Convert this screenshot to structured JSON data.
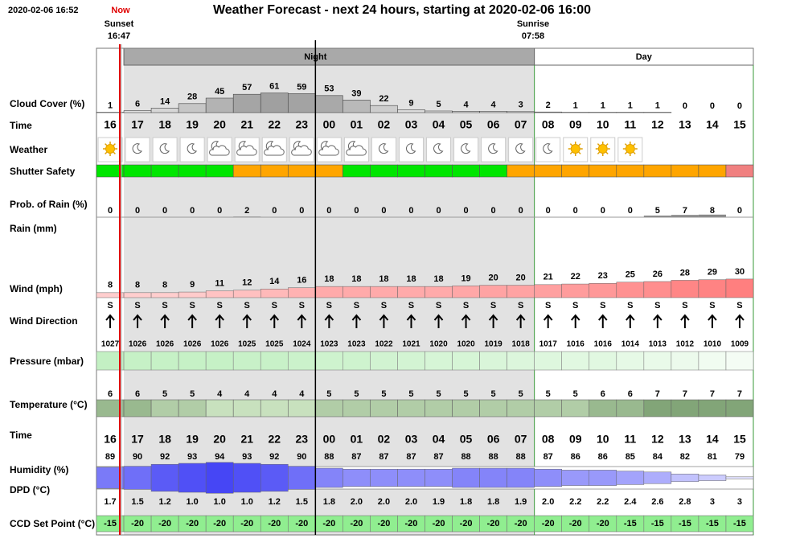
{
  "header": {
    "timestamp": "2020-02-06 16:52",
    "now": "Now",
    "title": "Weather Forecast - next 24 hours, starting at 2020-02-06 16:00",
    "sunset": {
      "label": "Sunset",
      "time": "16:47"
    },
    "sunrise": {
      "label": "Sunrise",
      "time": "07:58"
    }
  },
  "periods": {
    "night": "Night",
    "day": "Day"
  },
  "hours": [
    "16",
    "17",
    "18",
    "19",
    "20",
    "21",
    "22",
    "23",
    "00",
    "01",
    "02",
    "03",
    "04",
    "05",
    "06",
    "07",
    "08",
    "09",
    "10",
    "11",
    "12",
    "13",
    "14",
    "15"
  ],
  "rows": {
    "cloud_cover": {
      "label": "Cloud Cover (%)",
      "values": [
        1,
        6,
        14,
        28,
        45,
        57,
        61,
        59,
        53,
        39,
        22,
        9,
        5,
        4,
        4,
        3,
        2,
        1,
        1,
        1,
        1,
        0,
        0,
        0
      ]
    },
    "time_top": {
      "label": "Time"
    },
    "weather": {
      "label": "Weather",
      "icons": [
        "sun",
        "moon",
        "moon",
        "moon",
        "cloud-moon",
        "cloud-moon",
        "cloud-moon",
        "cloud-moon",
        "cloud-moon",
        "cloud-moon",
        "moon",
        "moon",
        "moon",
        "moon",
        "moon",
        "moon",
        "moon",
        "sun",
        "sun",
        "sun",
        null,
        null,
        null,
        null
      ]
    },
    "shutter_safety": {
      "label": "Shutter Safety",
      "colors": [
        "#00e600",
        "#00e600",
        "#00e600",
        "#00e600",
        "#00e600",
        "#ffa500",
        "#ffa500",
        "#ffa500",
        "#ffa500",
        "#00e600",
        "#00e600",
        "#00e600",
        "#00e600",
        "#00e600",
        "#00e600",
        "#ffa500",
        "#ffa500",
        "#ffa500",
        "#ffa500",
        "#ffa500",
        "#ffa500",
        "#ffa500",
        "#ffa500",
        "#f08080"
      ]
    },
    "prob_rain": {
      "label": "Prob. of Rain (%)",
      "values": [
        0,
        0,
        0,
        0,
        0,
        2,
        0,
        0,
        0,
        0,
        0,
        0,
        0,
        0,
        0,
        0,
        0,
        0,
        0,
        0,
        5,
        7,
        8,
        0
      ]
    },
    "rain": {
      "label": "Rain (mm)"
    },
    "wind": {
      "label": "Wind (mph)",
      "values": [
        8,
        8,
        8,
        9,
        11,
        12,
        14,
        16,
        18,
        18,
        18,
        18,
        18,
        19,
        20,
        20,
        21,
        22,
        23,
        25,
        26,
        28,
        29,
        30
      ]
    },
    "wind_direction": {
      "label": "Wind Direction",
      "values": [
        "S",
        "S",
        "S",
        "S",
        "S",
        "S",
        "S",
        "S",
        "S",
        "S",
        "S",
        "S",
        "S",
        "S",
        "S",
        "S",
        "S",
        "S",
        "S",
        "S",
        "S",
        "S",
        "S",
        "S"
      ]
    },
    "pressure": {
      "label": "Pressure (mbar)",
      "values": [
        1027,
        1026,
        1026,
        1026,
        1026,
        1025,
        1025,
        1024,
        1023,
        1023,
        1022,
        1021,
        1020,
        1020,
        1019,
        1018,
        1017,
        1016,
        1016,
        1014,
        1013,
        1012,
        1010,
        1009
      ]
    },
    "temperature": {
      "label": "Temperature (°C)",
      "values": [
        6,
        6,
        5,
        5,
        4,
        4,
        4,
        4,
        5,
        5,
        5,
        5,
        5,
        5,
        5,
        5,
        5,
        5,
        6,
        6,
        7,
        7,
        7,
        7
      ]
    },
    "time_bottom": {
      "label": "Time"
    },
    "humidity": {
      "label": "Humidity (%)",
      "values": [
        89,
        90,
        92,
        93,
        94,
        93,
        92,
        90,
        88,
        87,
        87,
        87,
        87,
        88,
        88,
        88,
        87,
        86,
        86,
        85,
        84,
        82,
        81,
        79
      ]
    },
    "dpd": {
      "label": "DPD (°C)",
      "values": [
        "1.7",
        "1.5",
        "1.2",
        "1.0",
        "1.0",
        "1.0",
        "1.2",
        "1.5",
        "1.8",
        "2.0",
        "2.0",
        "2.0",
        "1.9",
        "1.8",
        "1.8",
        "1.9",
        "2.0",
        "2.2",
        "2.2",
        "2.4",
        "2.6",
        "2.8",
        "3",
        "3"
      ]
    },
    "ccd": {
      "label": "CCD Set Point (°C)",
      "values": [
        -15,
        -20,
        -20,
        -20,
        -20,
        -20,
        -20,
        -20,
        -20,
        -20,
        -20,
        -20,
        -20,
        -20,
        -20,
        -20,
        -20,
        -20,
        -20,
        -15,
        -15,
        -15,
        -15,
        -15
      ]
    }
  }
}
